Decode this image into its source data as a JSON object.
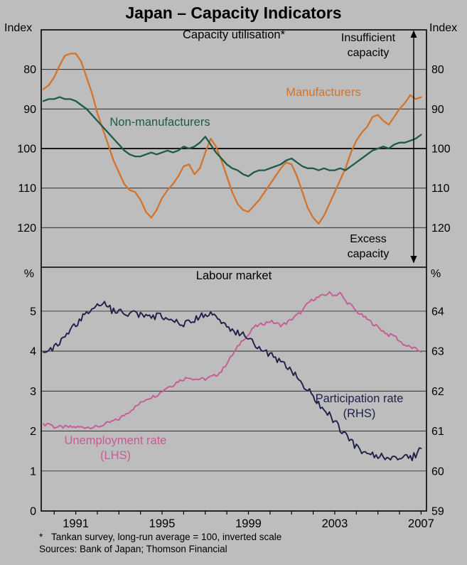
{
  "title": "Japan – Capacity Indicators",
  "colors": {
    "background": "#bdbdbd",
    "manufacturers": "#d4732a",
    "non_manufacturers": "#1c5a49",
    "unemployment": "#c75b93",
    "participation": "#1f2048"
  },
  "x_axis": {
    "xlim": [
      1989.4,
      2007.25
    ],
    "tick_years": [
      1990,
      1991,
      1992,
      1993,
      1994,
      1995,
      1996,
      1997,
      1998,
      1999,
      2000,
      2001,
      2002,
      2003,
      2004,
      2005,
      2006,
      2007
    ],
    "label_years": [
      1991,
      1995,
      1999,
      2003,
      2007
    ],
    "labels": [
      "1991",
      "1995",
      "1999",
      "2003",
      "2007"
    ]
  },
  "chart_data": [
    {
      "type": "line",
      "panel": "top",
      "title": "Capacity utilisation*",
      "unit_left": "Index",
      "unit_right": "Index",
      "y_inverted": true,
      "ylim": [
        70,
        130
      ],
      "yticks": [
        80,
        90,
        100,
        110,
        120
      ],
      "reference_line": 100,
      "annotations": {
        "top_right": "Insufficient capacity",
        "bottom_right": "Excess capacity"
      },
      "x_start": 1989.5,
      "x_step": 0.25,
      "series": [
        {
          "name": "Manufacturers",
          "color_key": "manufacturers",
          "values": [
            85,
            84,
            82,
            79,
            76.5,
            76,
            76,
            78,
            82,
            86,
            91,
            95,
            99,
            103,
            106,
            109,
            110.5,
            111,
            113,
            116,
            117.5,
            115.5,
            112.5,
            110.5,
            109,
            107,
            104.5,
            104,
            106.5,
            105,
            101,
            97.5,
            99.5,
            103,
            107,
            111,
            114,
            115.5,
            116,
            114.5,
            113,
            111,
            109,
            107,
            105,
            103.5,
            104,
            107,
            111,
            115,
            117.5,
            119,
            117,
            114,
            111,
            108,
            105,
            101,
            98,
            96,
            94.5,
            92,
            91.5,
            93,
            94,
            92,
            90,
            88.5,
            86.5,
            87.5,
            87
          ]
        },
        {
          "name": "Non-manufacturers",
          "color_key": "non_manufacturers",
          "values": [
            88,
            87.5,
            87.5,
            87,
            87.5,
            87.5,
            88,
            89,
            90,
            91.5,
            93,
            94.5,
            96,
            97.5,
            99,
            100.5,
            101.5,
            102,
            102,
            101.5,
            101,
            101.5,
            101,
            100.5,
            101,
            100.5,
            99.5,
            100,
            99.5,
            98.5,
            97,
            99,
            101,
            102.5,
            104,
            105,
            105.5,
            106.5,
            107,
            106,
            105.5,
            105.5,
            105,
            104.5,
            104,
            103,
            102.5,
            103.5,
            104.5,
            105,
            105,
            105.5,
            105,
            105.5,
            105.5,
            105,
            105.5,
            104.5,
            103.5,
            102.5,
            101.5,
            100.5,
            100,
            99.5,
            100,
            99,
            98.5,
            98.5,
            98,
            97.5,
            96.5
          ]
        }
      ]
    },
    {
      "type": "line",
      "panel": "bottom",
      "title": "Labour market",
      "unit_left": "%",
      "unit_right": "%",
      "ylim_left": [
        0,
        6.1
      ],
      "ylim_right": [
        59,
        65.1
      ],
      "yticks_left": [
        0,
        1,
        2,
        3,
        4,
        5
      ],
      "yticks_right": [
        59,
        60,
        61,
        62,
        63,
        64
      ],
      "x_start": 1989.5,
      "x_step": 0.25,
      "series": [
        {
          "name": "Unemployment rate",
          "scale_note": "(LHS)",
          "axis": "left",
          "color_key": "unemployment",
          "visual_noise": 0.04,
          "values": [
            2.15,
            2.2,
            2.1,
            2.1,
            2.1,
            2.1,
            2.1,
            2.1,
            2.1,
            2.1,
            2.1,
            2.15,
            2.2,
            2.25,
            2.3,
            2.4,
            2.5,
            2.6,
            2.7,
            2.8,
            2.85,
            2.9,
            3.0,
            3.1,
            3.15,
            3.25,
            3.3,
            3.35,
            3.3,
            3.3,
            3.3,
            3.35,
            3.4,
            3.5,
            3.7,
            3.9,
            4.1,
            4.3,
            4.4,
            4.6,
            4.65,
            4.7,
            4.75,
            4.7,
            4.65,
            4.7,
            4.8,
            4.9,
            5.0,
            5.2,
            5.3,
            5.35,
            5.4,
            5.45,
            5.4,
            5.45,
            5.25,
            5.15,
            5.0,
            4.9,
            4.8,
            4.7,
            4.6,
            4.5,
            4.4,
            4.4,
            4.25,
            4.15,
            4.1,
            4.05,
            4.0
          ]
        },
        {
          "name": "Participation rate",
          "scale_note": "(RHS)",
          "axis": "right",
          "color_key": "participation",
          "visual_noise": 0.09,
          "values": [
            62.95,
            63.0,
            63.1,
            63.2,
            63.35,
            63.5,
            63.65,
            63.8,
            63.95,
            64.05,
            64.15,
            64.2,
            64.1,
            64.0,
            64.0,
            63.95,
            63.9,
            63.95,
            63.9,
            63.85,
            63.8,
            63.9,
            63.85,
            63.8,
            63.75,
            63.7,
            63.7,
            63.75,
            63.8,
            63.85,
            63.9,
            63.95,
            63.85,
            63.75,
            63.65,
            63.55,
            63.45,
            63.4,
            63.3,
            63.2,
            63.1,
            63.0,
            62.9,
            62.8,
            62.7,
            62.6,
            62.5,
            62.35,
            62.2,
            62.05,
            61.9,
            61.7,
            61.55,
            61.4,
            61.25,
            61.05,
            60.9,
            60.75,
            60.6,
            60.5,
            60.45,
            60.4,
            60.35,
            60.4,
            60.3,
            60.35,
            60.3,
            60.35,
            60.3,
            60.4,
            60.55
          ]
        }
      ]
    }
  ],
  "footnote": {
    "marker": "*",
    "text": "Tankan survey, long-run average = 100, inverted scale"
  },
  "sources": "Sources: Bank of Japan; Thomson Financial"
}
